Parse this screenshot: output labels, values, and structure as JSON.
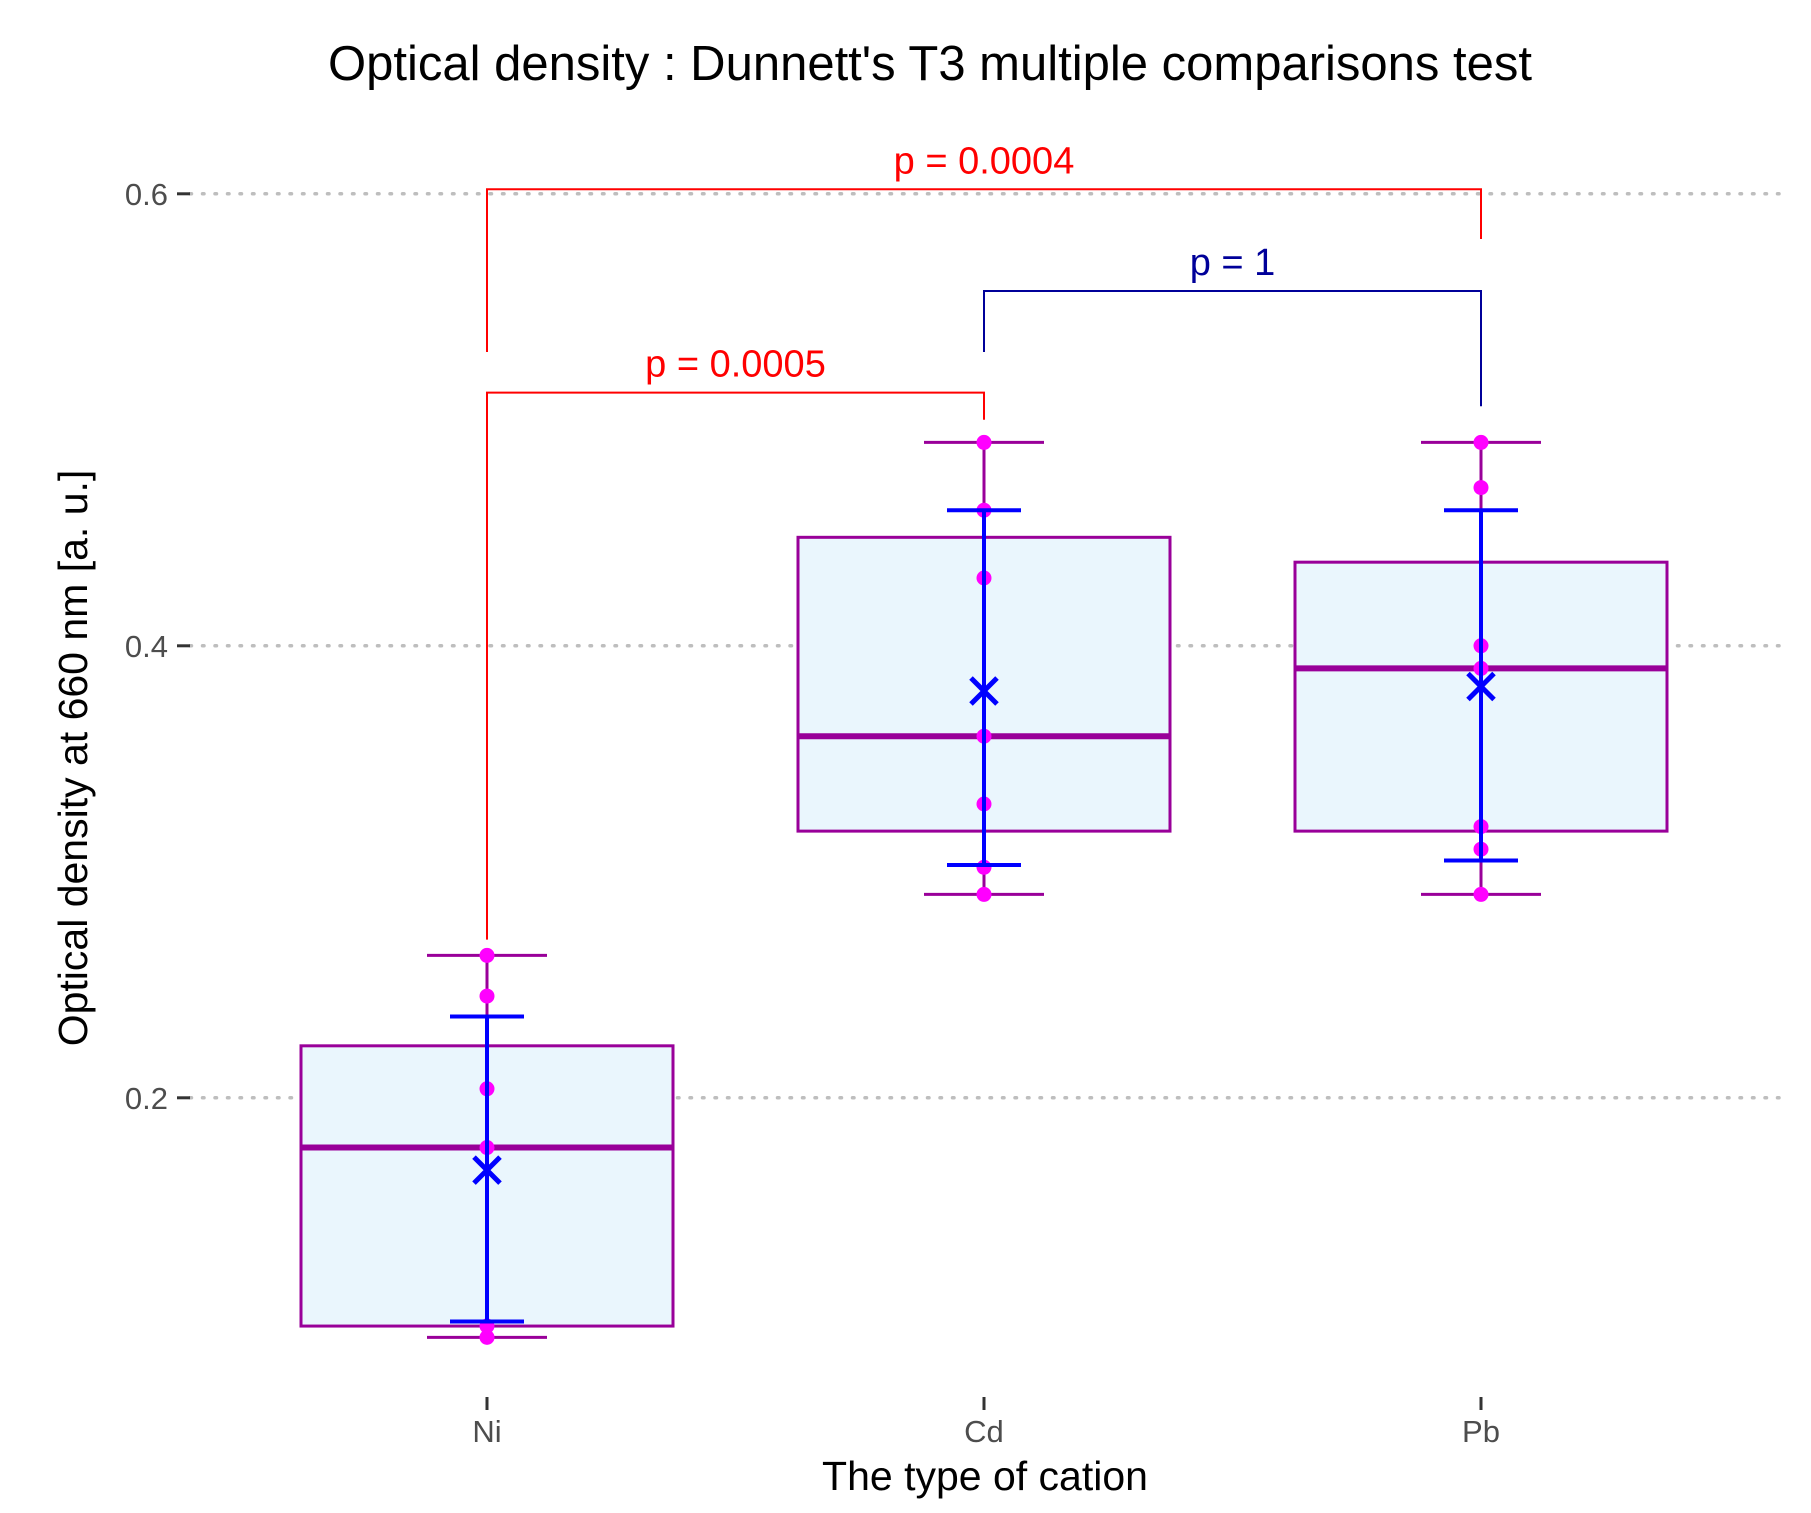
{
  "chart_data": {
    "type": "box",
    "title": "Optical density : Dunnett's T3 multiple comparisons test",
    "xlabel": "The type of cation",
    "ylabel": "Optical density at 660 nm [a. u.]",
    "ylim": [
      0.07,
      0.63
    ],
    "yticks": [
      {
        "value": 0.2,
        "label": "0.2"
      },
      {
        "value": 0.4,
        "label": "0.4"
      },
      {
        "value": 0.6,
        "label": "0.6"
      }
    ],
    "grid": "horizontal-dotted",
    "categories": [
      "Ni",
      "Cd",
      "Pb"
    ],
    "boxes": [
      {
        "name": "Ni",
        "q1": 0.099,
        "median": 0.178,
        "q3": 0.223,
        "whisker_low": 0.094,
        "whisker_high": 0.263,
        "mean": 0.168,
        "sd_low": 0.101,
        "sd_high": 0.236,
        "points": [
          0.094,
          0.099,
          0.178,
          0.204,
          0.245,
          0.263
        ]
      },
      {
        "name": "Cd",
        "q1": 0.318,
        "median": 0.36,
        "q3": 0.448,
        "whisker_low": 0.29,
        "whisker_high": 0.49,
        "mean": 0.38,
        "sd_low": 0.303,
        "sd_high": 0.46,
        "points": [
          0.29,
          0.302,
          0.33,
          0.36,
          0.43,
          0.46,
          0.49
        ]
      },
      {
        "name": "Pb",
        "q1": 0.318,
        "median": 0.39,
        "q3": 0.437,
        "whisker_low": 0.29,
        "whisker_high": 0.49,
        "mean": 0.382,
        "sd_low": 0.305,
        "sd_high": 0.46,
        "points": [
          0.29,
          0.31,
          0.32,
          0.39,
          0.4,
          0.47,
          0.49
        ]
      }
    ],
    "comparisons": [
      {
        "from": "Ni",
        "to": "Cd",
        "label": "p =  0.0005",
        "bracket_y": 0.512,
        "tip_from": 0.27,
        "tip_to": 0.5,
        "color": "#ff0000"
      },
      {
        "from": "Cd",
        "to": "Pb",
        "label": "p =  1",
        "bracket_y": 0.557,
        "tip_from": 0.53,
        "tip_to": 0.506,
        "color": "#000099"
      },
      {
        "from": "Ni",
        "to": "Pb",
        "label": "p =  0.0004",
        "bracket_y": 0.602,
        "tip_from": 0.53,
        "tip_to": 0.58,
        "color": "#ff0000"
      }
    ],
    "colors": {
      "box_fill": "#eaf6fd",
      "box_stroke": "#990099",
      "point": "#ff00ff",
      "mean_error": "#0000ff",
      "grid": "#bebebe",
      "tick": "#333333"
    }
  }
}
